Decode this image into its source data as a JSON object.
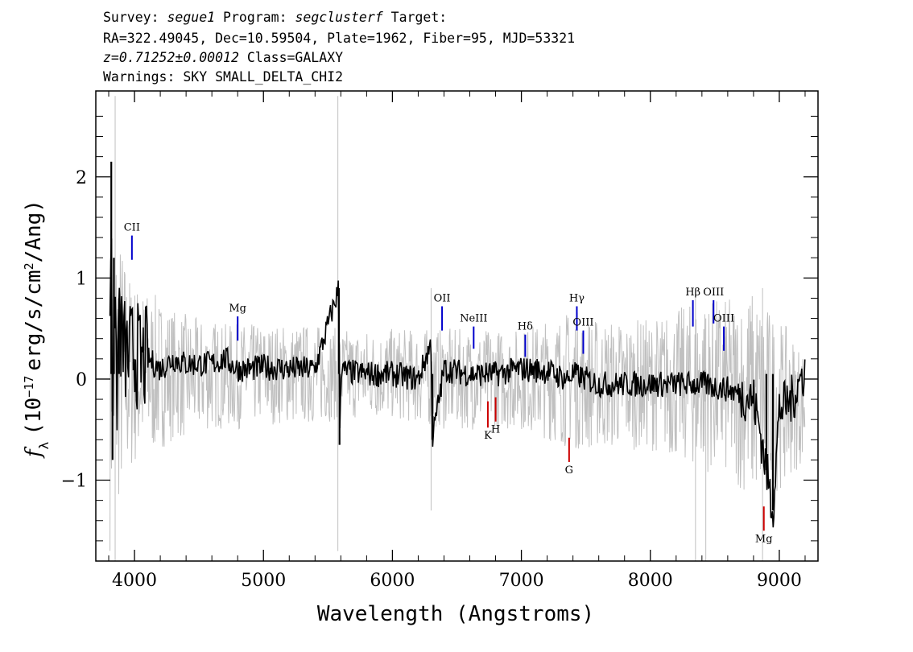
{
  "header": {
    "line1": {
      "survey_label": "Survey:",
      "survey": "segue1",
      "program_label": "Program:",
      "program": "segclusterf",
      "target_label": "Target:"
    },
    "line2": "RA=322.49045, Dec=10.59504, Plate=1962, Fiber=95, MJD=53321",
    "line3": {
      "redshift": "z=0.71252±0.00012",
      "class": "Class=GALAXY"
    },
    "line4": "Warnings: SKY SMALL_DELTA_CHI2"
  },
  "chart_data": {
    "type": "line",
    "xlabel": "Wavelength (Angstroms)",
    "ylabel": "f_λ (10^-17 erg/s/cm^2/Ang)",
    "xlim": [
      3700,
      9300
    ],
    "ylim": [
      -1.8,
      2.85
    ],
    "xticks": [
      4000,
      5000,
      6000,
      7000,
      8000,
      9000
    ],
    "yticks": [
      -1,
      0,
      1,
      2
    ],
    "ytick_labels": [
      "−1",
      "0",
      "1",
      "2"
    ],
    "colors": {
      "flux": "#000000",
      "noise": "#c0c0c0",
      "emission": "#0000cc",
      "absorption": "#cc0000"
    },
    "series": [
      {
        "role": "noise_envelope_gray",
        "x": [
          3810,
          3830,
          3850,
          3900,
          3950,
          4000,
          4100,
          4200,
          4300,
          4400,
          4500,
          4600,
          4700,
          4800,
          4900,
          5000,
          5200,
          5400,
          5600,
          5800,
          6000,
          6200,
          6400,
          6600,
          6800,
          7000,
          7200,
          7400,
          7600,
          7800,
          8000,
          8200,
          8400,
          8600,
          8800,
          9000,
          9200
        ],
        "upper": [
          1.9,
          1.6,
          1.6,
          1.4,
          1.1,
          1.0,
          0.9,
          0.8,
          0.7,
          0.65,
          0.6,
          0.6,
          0.55,
          0.55,
          0.55,
          0.55,
          0.55,
          0.55,
          0.5,
          0.5,
          0.5,
          0.5,
          0.5,
          0.5,
          0.5,
          0.5,
          0.6,
          0.7,
          0.6,
          0.6,
          0.6,
          0.7,
          0.8,
          0.8,
          0.9,
          0.6,
          0.3
        ],
        "lower": [
          -1.7,
          -1.5,
          -1.4,
          -1.2,
          -1.0,
          -0.9,
          -0.8,
          -0.7,
          -0.6,
          -0.6,
          -0.55,
          -0.5,
          -0.5,
          -0.5,
          -0.45,
          -0.45,
          -0.45,
          -0.45,
          -0.4,
          -0.4,
          -0.4,
          -0.45,
          -0.5,
          -0.5,
          -0.5,
          -0.5,
          -0.6,
          -0.7,
          -0.7,
          -0.7,
          -0.7,
          -0.8,
          -0.9,
          -1.0,
          -1.2,
          -1.1,
          -0.8
        ]
      },
      {
        "role": "flux_black",
        "x": [
          3810,
          3820,
          3830,
          3840,
          3860,
          3880,
          3900,
          3950,
          4000,
          4050,
          4100,
          4200,
          4300,
          4400,
          4500,
          4600,
          4700,
          4800,
          4900,
          5000,
          5200,
          5400,
          5585,
          5590,
          5600,
          5800,
          6000,
          6200,
          6300,
          6310,
          6400,
          6600,
          6800,
          7000,
          7200,
          7350,
          7400,
          7600,
          7800,
          8000,
          8200,
          8400,
          8600,
          8800,
          8850,
          8900,
          8950,
          9000,
          9100,
          9200
        ],
        "y": [
          0.3,
          2.15,
          -0.8,
          1.2,
          -0.3,
          0.8,
          0.35,
          0.2,
          0.3,
          0.15,
          0.2,
          0.1,
          0.2,
          0.15,
          0.15,
          0.15,
          0.2,
          0.1,
          0.1,
          0.12,
          0.1,
          0.1,
          0.9,
          -0.65,
          0.08,
          0.05,
          0.05,
          0.0,
          0.35,
          -0.6,
          0.1,
          0.05,
          0.05,
          0.1,
          0.08,
          0.0,
          0.05,
          -0.05,
          -0.05,
          -0.05,
          -0.05,
          -0.05,
          -0.1,
          -0.2,
          -0.5,
          -0.9,
          -1.3,
          -0.3,
          -0.2,
          0.1
        ]
      }
    ],
    "line_markers": [
      {
        "label": "CII",
        "x": 3980,
        "y_low": 1.18,
        "y_high": 1.42,
        "type": "emission"
      },
      {
        "label": "Mg",
        "x": 4800,
        "y_low": 0.38,
        "y_high": 0.62,
        "type": "emission"
      },
      {
        "label": "OII",
        "x": 6385,
        "y_low": 0.48,
        "y_high": 0.72,
        "type": "emission"
      },
      {
        "label": "NeIII",
        "x": 6630,
        "y_low": 0.3,
        "y_high": 0.52,
        "type": "emission"
      },
      {
        "label": "Hδ",
        "x": 7030,
        "y_low": 0.22,
        "y_high": 0.44,
        "type": "emission"
      },
      {
        "label": "Hγ",
        "x": 7430,
        "y_low": 0.48,
        "y_high": 0.72,
        "type": "emission"
      },
      {
        "label": "OIII",
        "x": 7480,
        "y_low": 0.25,
        "y_high": 0.48,
        "type": "emission"
      },
      {
        "label": "Hβ",
        "x": 8330,
        "y_low": 0.52,
        "y_high": 0.78,
        "type": "emission"
      },
      {
        "label": "OIII",
        "x": 8490,
        "y_low": 0.55,
        "y_high": 0.78,
        "type": "emission"
      },
      {
        "label": "OIII",
        "x": 8570,
        "y_low": 0.28,
        "y_high": 0.52,
        "type": "emission"
      },
      {
        "label": "K",
        "x": 6740,
        "y_low": -0.48,
        "y_high": -0.22,
        "type": "absorption"
      },
      {
        "label": "H",
        "x": 6800,
        "y_low": -0.42,
        "y_high": -0.18,
        "type": "absorption"
      },
      {
        "label": "G",
        "x": 7370,
        "y_low": -0.82,
        "y_high": -0.58,
        "type": "absorption"
      },
      {
        "label": "Mg",
        "x": 8880,
        "y_low": -1.5,
        "y_high": -1.26,
        "type": "absorption"
      }
    ]
  }
}
